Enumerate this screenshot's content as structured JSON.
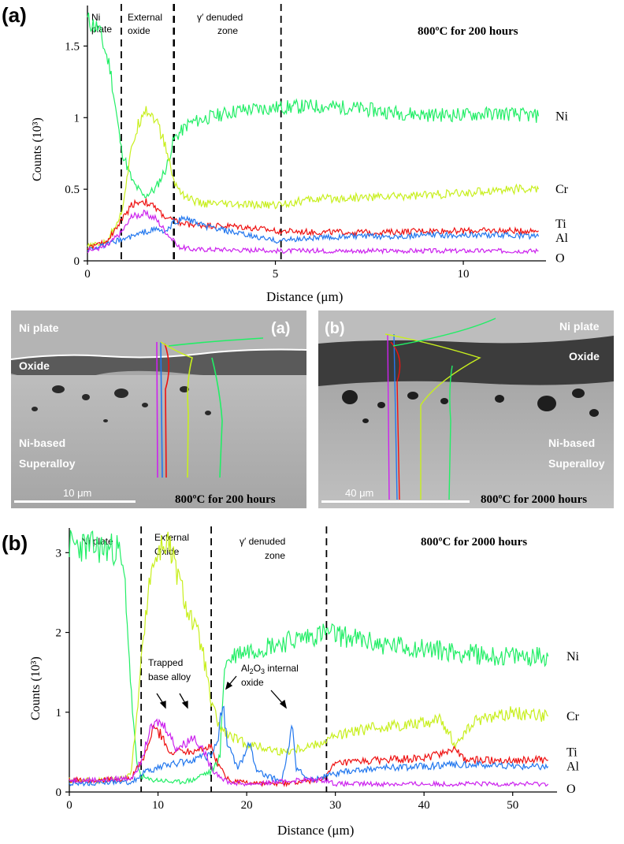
{
  "chart_data": [
    {
      "type": "line",
      "panel_label": "(a)",
      "title": "800ºC for 200 hours",
      "xlabel": "Distance (μm)",
      "ylabel": "Counts (10³)",
      "xlim": [
        0,
        12.2
      ],
      "ylim": [
        0,
        1.75
      ],
      "x_ticks": [
        0,
        5,
        10
      ],
      "x_tick_labels": [
        "0",
        "5",
        "10"
      ],
      "y_ticks": [
        0,
        0.5,
        1,
        1.5
      ],
      "y_tick_labels": [
        "0",
        "0.5",
        "1",
        "1.5"
      ],
      "boundaries": [
        0.9,
        2.3,
        5.15
      ],
      "regions": [
        "Ni plate",
        "External oxide",
        "γ′ denuded zone"
      ],
      "series": [
        {
          "name": "Ni",
          "color": "#22ee66",
          "x": [
            0,
            0.3,
            0.6,
            0.9,
            1.2,
            1.5,
            1.8,
            2.1,
            2.3,
            2.7,
            3.2,
            4,
            5,
            6,
            7,
            8,
            9,
            10,
            11,
            12
          ],
          "values": [
            1.68,
            1.62,
            1.35,
            0.78,
            0.55,
            0.45,
            0.5,
            0.65,
            0.85,
            0.96,
            1.0,
            1.05,
            1.07,
            1.08,
            1.07,
            1.04,
            1.02,
            1.02,
            1.03,
            1.01
          ]
        },
        {
          "name": "Cr",
          "color": "#c8ef1e",
          "x": [
            0,
            0.5,
            0.9,
            1.2,
            1.5,
            1.8,
            2.1,
            2.3,
            2.6,
            3.0,
            4,
            5,
            6,
            7,
            8,
            9,
            10,
            11,
            12
          ],
          "values": [
            0.1,
            0.13,
            0.33,
            0.82,
            1.07,
            1.0,
            0.78,
            0.55,
            0.45,
            0.4,
            0.39,
            0.39,
            0.43,
            0.44,
            0.45,
            0.46,
            0.47,
            0.5,
            0.5
          ]
        },
        {
          "name": "Ti",
          "color": "#ee1111",
          "x": [
            0,
            0.5,
            0.9,
            1.2,
            1.5,
            1.8,
            2.1,
            2.5,
            3,
            4,
            5,
            6,
            7,
            8,
            9,
            10,
            11,
            12
          ],
          "values": [
            0.09,
            0.13,
            0.28,
            0.4,
            0.42,
            0.37,
            0.3,
            0.26,
            0.25,
            0.24,
            0.21,
            0.2,
            0.2,
            0.2,
            0.21,
            0.21,
            0.21,
            0.21
          ]
        },
        {
          "name": "Al",
          "color": "#2277ee",
          "x": [
            0,
            0.5,
            0.9,
            1.2,
            1.5,
            1.8,
            2.1,
            2.3,
            2.6,
            3,
            4,
            5,
            6,
            7,
            8,
            9,
            10,
            11,
            12
          ],
          "values": [
            0.08,
            0.11,
            0.15,
            0.17,
            0.2,
            0.22,
            0.2,
            0.27,
            0.3,
            0.25,
            0.19,
            0.14,
            0.16,
            0.17,
            0.17,
            0.18,
            0.18,
            0.18,
            0.17
          ]
        },
        {
          "name": "O",
          "color": "#cc22ee",
          "x": [
            0,
            0.5,
            0.9,
            1.2,
            1.5,
            1.8,
            2.1,
            2.4,
            2.8,
            3.5,
            5,
            6,
            8,
            10,
            12
          ],
          "values": [
            0.07,
            0.1,
            0.2,
            0.31,
            0.33,
            0.3,
            0.2,
            0.1,
            0.08,
            0.08,
            0.07,
            0.07,
            0.07,
            0.07,
            0.07
          ]
        }
      ]
    },
    {
      "type": "line",
      "panel_label": "(b)",
      "title": "800ºC for 2000 hours",
      "xlabel": "Distance (μm)",
      "ylabel": "Counts (10³)",
      "xlim": [
        0,
        55
      ],
      "ylim": [
        0,
        3.25
      ],
      "x_ticks": [
        0,
        10,
        20,
        30,
        40,
        50
      ],
      "x_tick_labels": [
        "0",
        "10",
        "20",
        "30",
        "40",
        "50"
      ],
      "y_ticks": [
        0,
        1,
        2,
        3
      ],
      "y_tick_labels": [
        "0",
        "1",
        "2",
        "3"
      ],
      "boundaries": [
        8.1,
        16.0,
        29.0
      ],
      "regions": [
        "Ni plate",
        "External Oxide",
        "γ′ denuded zone"
      ],
      "annotations": [
        "Trapped base alloy",
        "Al2O3 internal oxide"
      ],
      "series": [
        {
          "name": "Ni",
          "color": "#22ee66",
          "x": [
            0,
            2,
            4,
            5.5,
            6.3,
            7,
            7.6,
            8.1,
            9,
            10,
            12,
            14,
            15,
            16,
            17,
            17.5,
            19,
            21,
            23,
            25,
            27,
            29,
            31,
            35,
            40,
            44,
            48,
            52,
            54
          ],
          "values": [
            3.1,
            3.08,
            3.05,
            3.05,
            2.6,
            1.2,
            0.35,
            0.2,
            0.15,
            0.15,
            0.12,
            0.15,
            0.22,
            0.25,
            0.45,
            1.6,
            1.75,
            1.8,
            1.85,
            1.9,
            1.95,
            2.0,
            1.95,
            1.85,
            1.8,
            1.75,
            1.7,
            1.7,
            1.7
          ]
        },
        {
          "name": "Cr",
          "color": "#c8ef1e",
          "x": [
            0,
            3,
            6,
            7,
            8.1,
            9,
            10,
            11,
            12,
            13,
            14,
            15,
            16,
            17,
            18,
            20,
            22,
            24,
            26,
            28,
            30,
            34,
            38,
            42,
            43.5,
            46,
            50,
            54
          ],
          "values": [
            0.15,
            0.15,
            0.17,
            0.25,
            1.6,
            2.7,
            3.0,
            3.15,
            2.8,
            2.4,
            2.1,
            1.8,
            1.1,
            0.8,
            0.7,
            0.6,
            0.55,
            0.5,
            0.55,
            0.6,
            0.7,
            0.8,
            0.85,
            0.9,
            0.6,
            0.9,
            1.0,
            0.95
          ]
        },
        {
          "name": "Ti",
          "color": "#ee1111",
          "x": [
            0,
            4,
            7,
            8.5,
            9.5,
            10.5,
            11.5,
            12.5,
            13.5,
            14.5,
            16,
            17,
            18,
            20,
            23,
            26,
            28,
            29,
            30,
            35,
            40,
            43.5,
            44.5,
            48,
            54
          ],
          "values": [
            0.15,
            0.15,
            0.17,
            0.45,
            0.8,
            0.7,
            0.45,
            0.55,
            0.5,
            0.55,
            0.55,
            0.3,
            0.15,
            0.12,
            0.1,
            0.12,
            0.15,
            0.2,
            0.35,
            0.4,
            0.42,
            0.55,
            0.4,
            0.4,
            0.4
          ]
        },
        {
          "name": "Al",
          "color": "#2277ee",
          "x": [
            0,
            4,
            7,
            8.5,
            10,
            11.5,
            13,
            14.5,
            16,
            16.8,
            17.3,
            17.8,
            19,
            20.3,
            21,
            22,
            24,
            24.8,
            25.2,
            25.6,
            27,
            29,
            31,
            35,
            40,
            44,
            48,
            54
          ],
          "values": [
            0.1,
            0.12,
            0.12,
            0.25,
            0.3,
            0.35,
            0.38,
            0.42,
            0.45,
            0.7,
            1.15,
            0.6,
            0.3,
            0.6,
            0.3,
            0.2,
            0.15,
            0.6,
            0.85,
            0.3,
            0.15,
            0.2,
            0.25,
            0.3,
            0.32,
            0.35,
            0.33,
            0.32
          ]
        },
        {
          "name": "O",
          "color": "#cc22ee",
          "x": [
            0,
            4,
            7,
            8.2,
            9,
            10,
            11,
            12,
            13,
            14,
            15,
            16,
            17,
            18,
            20,
            23,
            26,
            29,
            30,
            35,
            40,
            45,
            50,
            54
          ],
          "values": [
            0.15,
            0.15,
            0.18,
            0.4,
            0.75,
            0.88,
            0.8,
            0.55,
            0.6,
            0.7,
            0.55,
            0.3,
            0.2,
            0.12,
            0.1,
            0.12,
            0.15,
            0.15,
            0.1,
            0.1,
            0.1,
            0.1,
            0.1,
            0.1
          ]
        }
      ]
    }
  ],
  "micrographs": [
    {
      "panel_label": "(a)",
      "labels": [
        "Ni plate",
        "Oxide",
        "Ni-based",
        "Superalloy"
      ],
      "scale_bar": "10 μm",
      "caption": "800ºC for 200 hours"
    },
    {
      "panel_label": "(b)",
      "labels": [
        "Ni plate",
        "Oxide",
        "Ni-based",
        "Superalloy"
      ],
      "scale_bar": "40 μm",
      "caption": "800ºC for 2000 hours"
    }
  ]
}
